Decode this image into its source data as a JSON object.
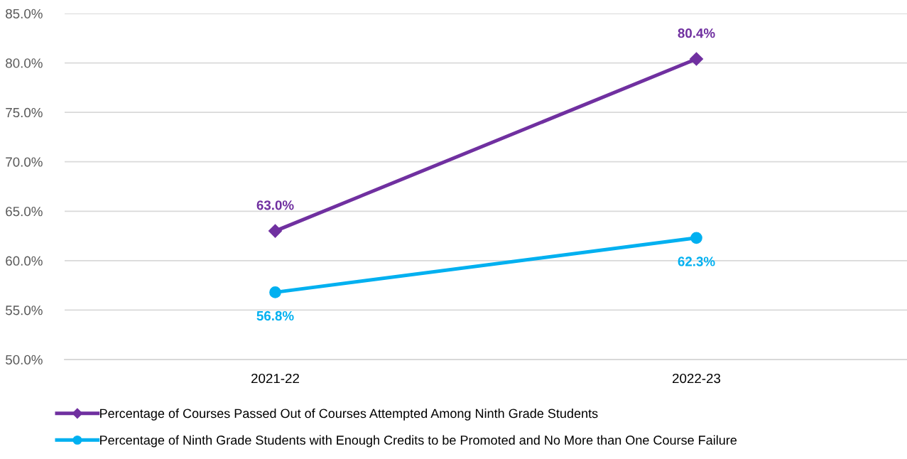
{
  "chart_data": {
    "type": "line",
    "categories": [
      "2021-22",
      "2022-23"
    ],
    "series": [
      {
        "name": "Percentage of Courses Passed Out of Courses Attempted Among Ninth Grade Students",
        "color": "#7030a0",
        "marker": "diamond",
        "values": [
          63.0,
          80.4
        ],
        "value_labels": [
          "63.0%",
          "80.4%"
        ]
      },
      {
        "name": "Percentage of Ninth Grade Students with Enough Credits to be Promoted and No More than One Course Failure",
        "color": "#00b0f0",
        "marker": "circle",
        "values": [
          56.8,
          62.3
        ],
        "value_labels": [
          "56.8%",
          "62.3%"
        ]
      }
    ],
    "ylim": [
      50,
      85
    ],
    "yticks": [
      {
        "value": 50,
        "label": "50.0%"
      },
      {
        "value": 55,
        "label": "55.0%"
      },
      {
        "value": 60,
        "label": "60.0%"
      },
      {
        "value": 65,
        "label": "65.0%"
      },
      {
        "value": 70,
        "label": "70.0%"
      },
      {
        "value": 75,
        "label": "75.0%"
      },
      {
        "value": 80,
        "label": "80.0%"
      },
      {
        "value": 85,
        "label": "85.0%"
      }
    ],
    "grid": "y",
    "legend": "bottom",
    "line_style": "solid"
  }
}
